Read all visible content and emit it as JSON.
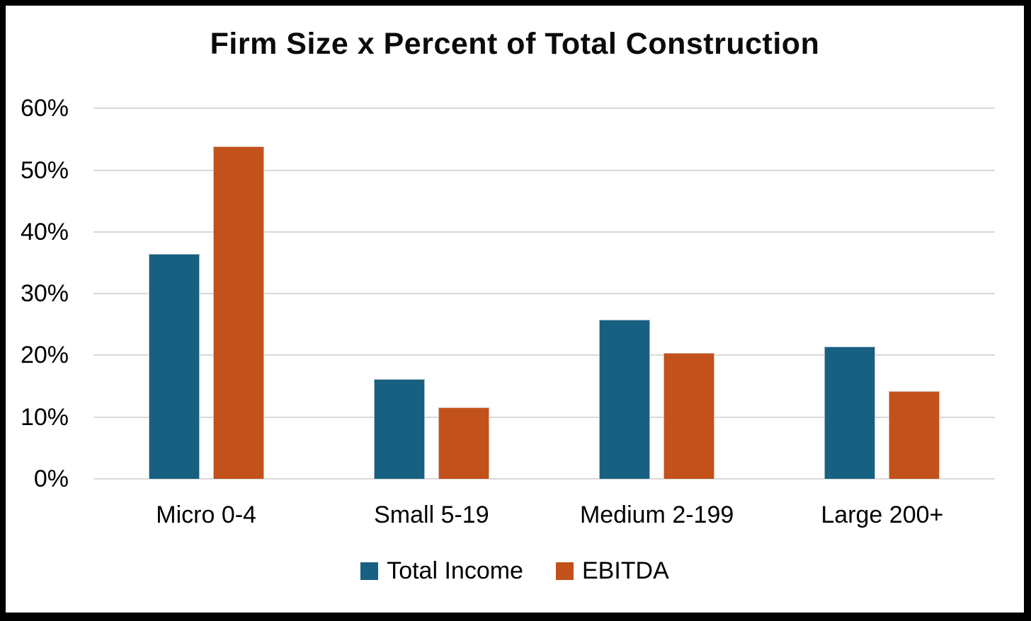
{
  "chart_data": {
    "type": "bar",
    "title": "Firm Size x Percent of Total Construction",
    "categories": [
      "Micro 0-4",
      "Small 5-19",
      "Medium 2-199",
      "Large 200+"
    ],
    "series": [
      {
        "name": "Total Income",
        "color": "#176082",
        "values": [
          36.4,
          16.2,
          25.8,
          21.4
        ]
      },
      {
        "name": "EBITDA",
        "color": "#C3511B",
        "values": [
          53.8,
          11.6,
          20.4,
          14.2
        ]
      }
    ],
    "xlabel": "",
    "ylabel": "",
    "ylim": [
      0,
      60
    ],
    "ytick_step": 10,
    "ytick_labels": [
      "0%",
      "10%",
      "20%",
      "30%",
      "40%",
      "50%",
      "60%"
    ],
    "grid": "horizontal",
    "gridline_color": "#D9D9D9",
    "legend_position": "bottom-center",
    "background_color": "#FFFFFF",
    "frame_border_color": "#000000",
    "text_color": "#000000"
  }
}
